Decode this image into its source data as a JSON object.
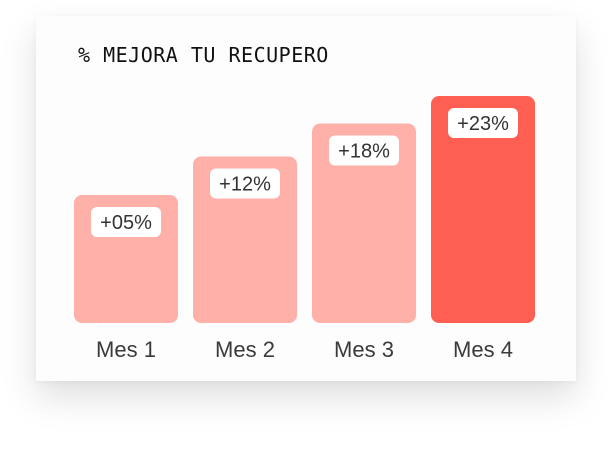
{
  "chart_data": {
    "type": "bar",
    "title": "% MEJORA TU RECUPERO",
    "categories": [
      "Mes 1",
      "Mes 2",
      "Mes 3",
      "Mes 4"
    ],
    "values": [
      5,
      12,
      18,
      23
    ],
    "data_labels": [
      "+05%",
      "+12%",
      "+18%",
      "+23%"
    ],
    "ylim": [
      0,
      23
    ],
    "grid": false,
    "legend": "none",
    "colors": {
      "bar": "#ffb0a9",
      "highlight_bar": "#ff5f52",
      "highlight_index": 3,
      "label_bg": "#ffffff",
      "text": "#333333"
    }
  }
}
